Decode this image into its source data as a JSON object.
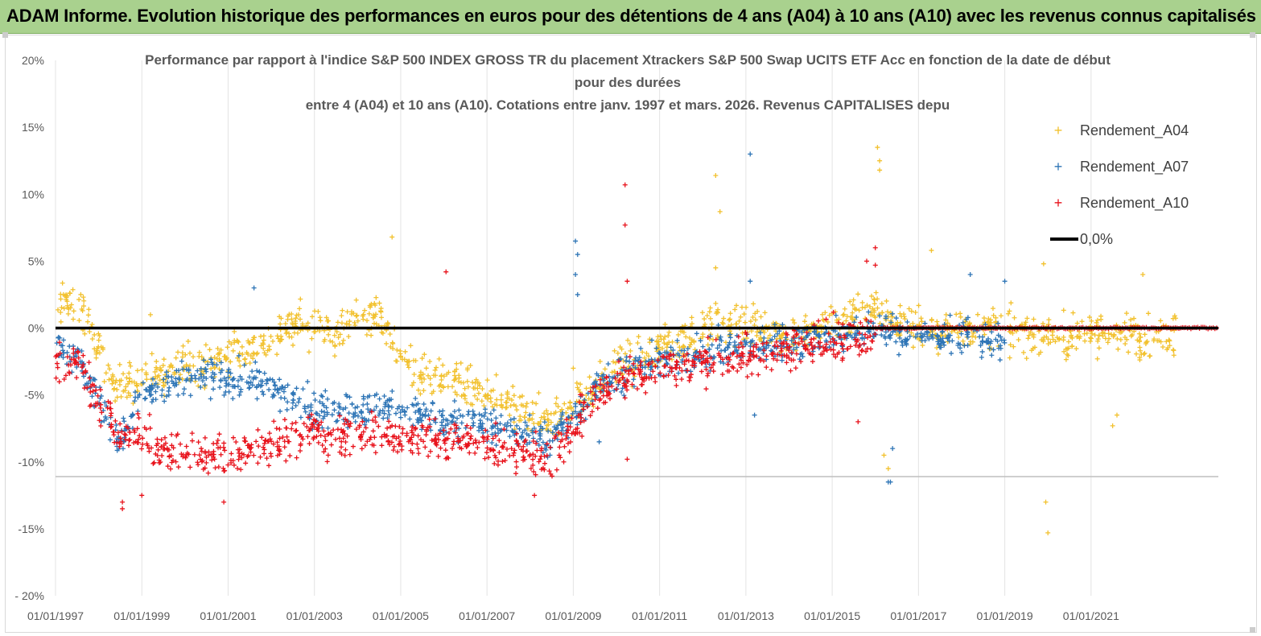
{
  "header": {
    "banner_title": "ADAM Informe. Evolution historique des performances en euros pour des détentions de 4 ans (A04) à 10 ans (A10) avec les revenus connus capitalisés"
  },
  "colors": {
    "a04": "#f2c12e",
    "a07": "#2e75b6",
    "a10": "#e8121b",
    "zero": "#000000",
    "banner": "#a9d18e"
  },
  "chart_data": {
    "type": "scatter",
    "title_lines": [
      "Performance par rapport à l'indice S&P 500 INDEX GROSS TR  du placement Xtrackers S&P 500 Swap UCITS ETF Acc en fonction de la date de début",
      "pour des durées",
      "entre 4 (A04) et 10 ans (A10). Cotations entre janv. 1997 et mars. 2026. Revenus CAPITALISES depu"
    ],
    "xlabel": "",
    "ylabel": "",
    "x_range": [
      1997.0,
      2023.95
    ],
    "ylim": [
      -20,
      20
    ],
    "y_ticks": [
      20,
      15,
      10,
      5,
      0,
      -5,
      -10,
      -15,
      -20
    ],
    "y_tick_labels": [
      "20%",
      "15%",
      "10%",
      "5%",
      "0%",
      "-5%",
      "-10%",
      "-15%",
      "- 20%"
    ],
    "x_ticks": [
      1997,
      1999,
      2001,
      2003,
      2005,
      2007,
      2009,
      2011,
      2013,
      2015,
      2017,
      2019,
      2021
    ],
    "x_tick_labels": [
      "01/01/1997",
      "01/01/1999",
      "01/01/2001",
      "01/01/2003",
      "01/01/2005",
      "01/01/2007",
      "01/01/2009",
      "01/01/2011",
      "01/01/2013",
      "01/01/2015",
      "01/01/2017",
      "01/01/2019",
      "01/01/2021"
    ],
    "reference_line_y": -11.1,
    "legend": {
      "position": "right",
      "entries": [
        "Rendement_A04",
        "Rendement_A07",
        "Rendement_A10",
        "0,0%"
      ]
    },
    "series": [
      {
        "name": "Rendement_A04",
        "x": [
          1997.0,
          1997.5,
          1998.0,
          1998.5,
          1999.0,
          1999.5,
          2000.0,
          2000.5,
          2001.0,
          2001.5,
          2002.0,
          2002.5,
          2003.0,
          2003.5,
          2004.0,
          2004.5,
          2005.0,
          2005.5,
          2006.0,
          2006.5,
          2007.0,
          2007.5,
          2008.0,
          2008.5,
          2009.0,
          2009.5,
          2010.0,
          2010.5,
          2011.0,
          2011.5,
          2012.0,
          2012.5,
          2013.0,
          2013.5,
          2014.0,
          2014.5,
          2015.0,
          2015.5,
          2016.0,
          2016.5,
          2017.0,
          2017.5,
          2018.0,
          2018.5,
          2019.0,
          2019.5,
          2020.0,
          2020.5,
          2021.0,
          2021.5,
          2022.0,
          2022.5,
          2023.0
        ],
        "values": [
          1.5,
          2.0,
          -1.5,
          -4.5,
          -3.8,
          -3.5,
          -2.5,
          -2.8,
          -2.0,
          -1.5,
          -0.8,
          0.3,
          0.0,
          -0.2,
          0.8,
          1.2,
          -2.5,
          -3.5,
          -3.8,
          -4.5,
          -5.0,
          -5.8,
          -6.5,
          -7.0,
          -5.5,
          -4.5,
          -3.0,
          -2.5,
          -1.5,
          -1.0,
          0.0,
          0.5,
          0.2,
          0.0,
          -0.5,
          -0.3,
          0.5,
          1.0,
          1.5,
          0.5,
          0.0,
          -0.5,
          0.2,
          0.0,
          -0.2,
          -0.5,
          -0.5,
          -0.8,
          -0.5,
          -0.3,
          -0.5,
          -0.8,
          -0.3
        ],
        "spread": 1.6,
        "outliers": [
          [
            2004.8,
            6.8
          ],
          [
            2012.3,
            11.4
          ],
          [
            2012.4,
            8.7
          ],
          [
            2012.3,
            4.5
          ],
          [
            2016.05,
            13.5
          ],
          [
            2016.1,
            12.5
          ],
          [
            2016.1,
            11.8
          ],
          [
            2016.3,
            -10.5
          ],
          [
            2016.2,
            -9.5
          ],
          [
            2020.0,
            -15.3
          ],
          [
            2019.95,
            -13.0
          ],
          [
            2021.6,
            -6.5
          ],
          [
            2021.5,
            -7.3
          ],
          [
            2019.9,
            4.8
          ],
          [
            2017.3,
            5.8
          ],
          [
            2022.2,
            4.0
          ],
          [
            2009.0,
            -3.0
          ],
          [
            1999.2,
            1.0
          ]
        ]
      },
      {
        "name": "Rendement_A07",
        "x": [
          1997.0,
          1997.5,
          1998.0,
          1998.5,
          1999.0,
          1999.5,
          2000.0,
          2000.5,
          2001.0,
          2001.5,
          2002.0,
          2002.5,
          2003.0,
          2003.5,
          2004.0,
          2004.5,
          2005.0,
          2005.5,
          2006.0,
          2006.5,
          2007.0,
          2007.5,
          2008.0,
          2008.5,
          2009.0,
          2009.5,
          2010.0,
          2010.5,
          2011.0,
          2011.5,
          2012.0,
          2012.5,
          2013.0,
          2013.5,
          2014.0,
          2014.5,
          2015.0,
          2015.5,
          2016.0,
          2016.5,
          2017.0,
          2017.5,
          2018.0,
          2018.5,
          2019.0
        ],
        "values": [
          -1.0,
          -2.0,
          -5.5,
          -8.5,
          -5.0,
          -4.5,
          -4.0,
          -3.5,
          -4.0,
          -3.8,
          -4.5,
          -5.5,
          -6.0,
          -6.0,
          -6.2,
          -6.0,
          -6.0,
          -6.5,
          -6.8,
          -7.0,
          -7.2,
          -7.5,
          -8.0,
          -8.5,
          -6.5,
          -4.5,
          -3.5,
          -3.0,
          -2.5,
          -2.2,
          -2.0,
          -1.5,
          -1.5,
          -1.2,
          -1.0,
          -0.8,
          -0.5,
          -0.5,
          0.0,
          -0.5,
          -0.5,
          -0.8,
          -0.5,
          -0.8,
          -1.0
        ],
        "spread": 1.4,
        "outliers": [
          [
            2009.05,
            6.5
          ],
          [
            2009.1,
            5.5
          ],
          [
            2009.05,
            4.0
          ],
          [
            2009.1,
            2.5
          ],
          [
            2013.1,
            13.0
          ],
          [
            2013.1,
            3.5
          ],
          [
            2016.3,
            -11.5
          ],
          [
            2016.35,
            -11.5
          ],
          [
            2016.4,
            -9.0
          ],
          [
            2001.6,
            3.0
          ],
          [
            2009.6,
            -8.5
          ],
          [
            2013.2,
            -6.5
          ],
          [
            2018.2,
            4.0
          ],
          [
            2019.0,
            3.5
          ]
        ]
      },
      {
        "name": "Rendement_A10",
        "x": [
          1997.0,
          1997.5,
          1998.0,
          1998.5,
          1999.0,
          1999.5,
          2000.0,
          2000.5,
          2001.0,
          2001.5,
          2002.0,
          2002.5,
          2003.0,
          2003.5,
          2004.0,
          2004.5,
          2005.0,
          2005.5,
          2006.0,
          2006.5,
          2007.0,
          2007.5,
          2008.0,
          2008.5,
          2009.0,
          2009.5,
          2010.0,
          2010.5,
          2011.0,
          2011.5,
          2012.0,
          2012.5,
          2013.0,
          2013.5,
          2014.0,
          2014.5,
          2015.0,
          2015.5,
          2016.0
        ],
        "values": [
          -3.0,
          -2.5,
          -5.5,
          -8.0,
          -8.5,
          -9.0,
          -9.5,
          -9.5,
          -9.5,
          -9.0,
          -8.5,
          -8.0,
          -8.0,
          -8.0,
          -7.8,
          -8.0,
          -8.0,
          -8.2,
          -8.5,
          -8.5,
          -8.8,
          -9.0,
          -9.5,
          -9.8,
          -7.5,
          -5.0,
          -4.0,
          -3.5,
          -3.0,
          -2.8,
          -2.5,
          -2.5,
          -2.0,
          -2.0,
          -1.5,
          -1.0,
          -1.0,
          -0.8,
          -0.5
        ],
        "spread": 1.6,
        "outliers": [
          [
            1998.55,
            -13.5
          ],
          [
            1998.55,
            -13.0
          ],
          [
            2006.05,
            4.2
          ],
          [
            2010.2,
            10.7
          ],
          [
            2010.2,
            7.7
          ],
          [
            2010.25,
            3.5
          ],
          [
            2010.25,
            -9.8
          ],
          [
            2015.8,
            5.0
          ],
          [
            2016.0,
            6.0
          ],
          [
            2016.0,
            4.7
          ],
          [
            2015.6,
            -7.0
          ],
          [
            1999.0,
            -12.5
          ],
          [
            2000.9,
            -13.0
          ],
          [
            2008.1,
            -12.5
          ]
        ]
      }
    ]
  }
}
